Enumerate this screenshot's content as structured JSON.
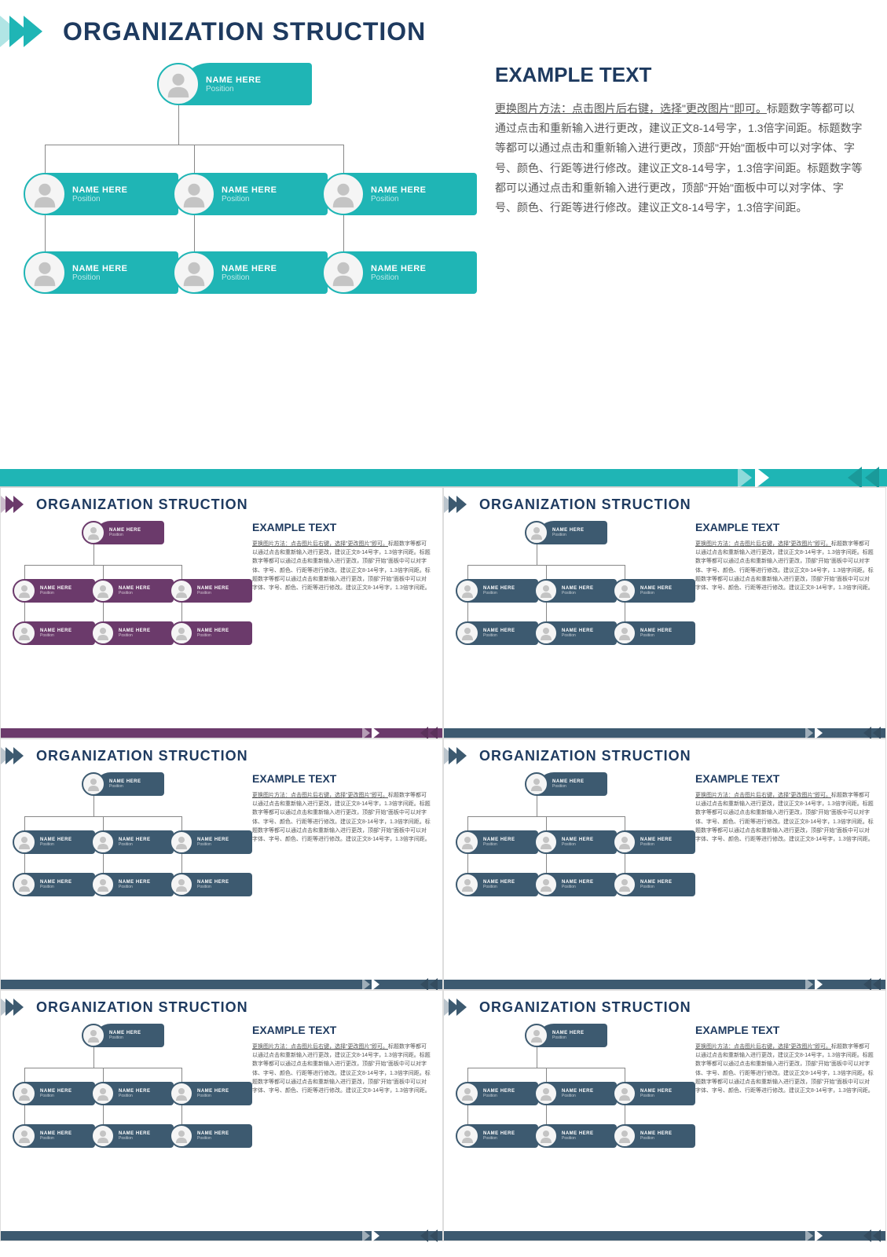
{
  "title": "ORGANIZATION STRUCTION",
  "example_title": "EXAMPLE TEXT",
  "example_underlined": "更换图片方法：点击图片后右键，选择\"更改图片\"即可。",
  "example_body": "标题数字等都可以通过点击和重新输入进行更改，建议正文8-14号字，1.3倍字间距。标题数字等都可以通过点击和重新输入进行更改，顶部\"开始\"面板中可以对字体、字号、颜色、行距等进行修改。建议正文8-14号字，1.3倍字间距。标题数字等都可以通过点击和重新输入进行更改，顶部\"开始\"面板中可以对字体、字号、颜色、行距等进行修改。建议正文8-14号字，1.3倍字间距。",
  "node_name": "NAME HERE",
  "node_position": "Position",
  "avatar_fill": "#c4c4c4",
  "colors": {
    "main": "#1fb5b5",
    "t1": "#6b3a6b",
    "t2": "#3d5a70",
    "t3": "#3d5a70",
    "t4": "#3d5a70",
    "t5": "#3d5a70",
    "t6": "#3d5a70"
  }
}
